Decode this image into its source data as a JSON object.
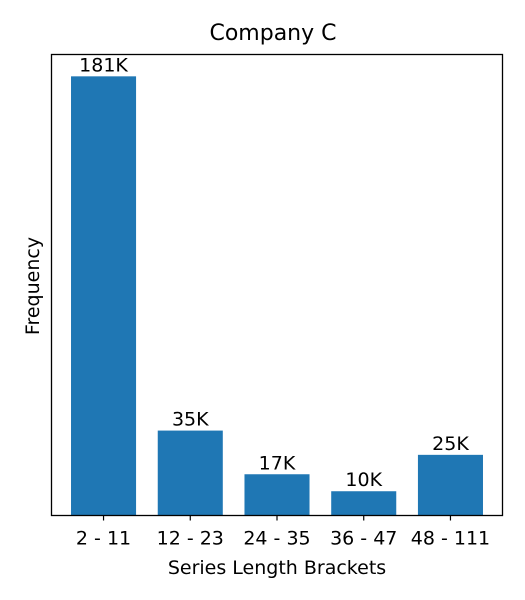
{
  "chart_data": {
    "type": "bar",
    "title": "Company C",
    "xlabel": "Series Length Brackets",
    "ylabel": "Frequency",
    "categories": [
      "2 - 11",
      "12 - 23",
      "24 - 35",
      "36 - 47",
      "48 - 111"
    ],
    "values": [
      181000,
      35000,
      17000,
      10000,
      25000
    ],
    "data_labels": [
      "181K",
      "35K",
      "17K",
      "10K",
      "25K"
    ],
    "ylim": [
      0,
      190000
    ],
    "y_ticks_visible": false,
    "grid": false,
    "bar_color": "#1f77b4"
  }
}
